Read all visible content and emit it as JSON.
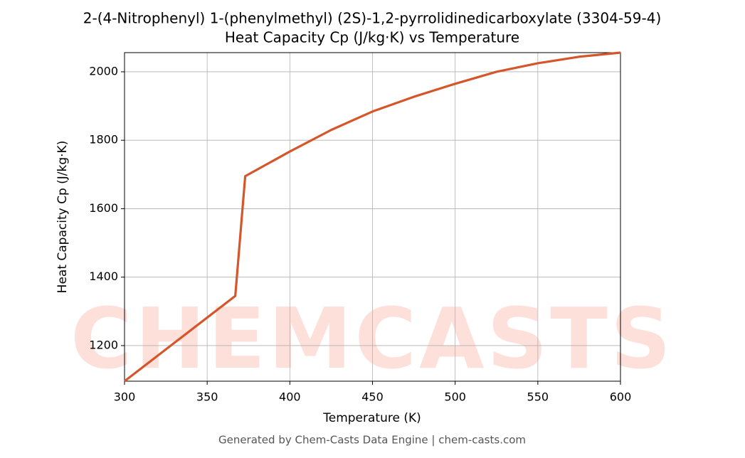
{
  "chart_data": {
    "type": "line",
    "title": "2-(4-Nitrophenyl) 1-(phenylmethyl) (2S)-1,2-pyrrolidinedicarboxylate (3304-59-4)",
    "subtitle": "Heat Capacity Cp (J/kg·K) vs Temperature",
    "x_label": "Temperature (K)",
    "y_label": "Heat Capacity Cp (J/kg·K)",
    "footer": "Generated by Chem-Casts Data Engine | chem-casts.com",
    "watermark": "CHEMCASTS",
    "x": [
      300,
      367,
      373,
      400,
      425,
      450,
      475,
      500,
      525,
      550,
      575,
      600
    ],
    "series": [
      {
        "name": "Cp",
        "color": "#d4562a",
        "values": [
          1096,
          1345,
          1695,
          1767,
          1830,
          1884,
          1927,
          1965,
          2000,
          2025,
          2044,
          2056
        ]
      }
    ],
    "xlim": [
      300,
      600
    ],
    "xticks": [
      300,
      350,
      400,
      450,
      500,
      550,
      600
    ],
    "ylim": [
      1096,
      2056
    ],
    "yticks": [
      1200,
      1400,
      1600,
      1800,
      2000
    ],
    "grid": true
  }
}
